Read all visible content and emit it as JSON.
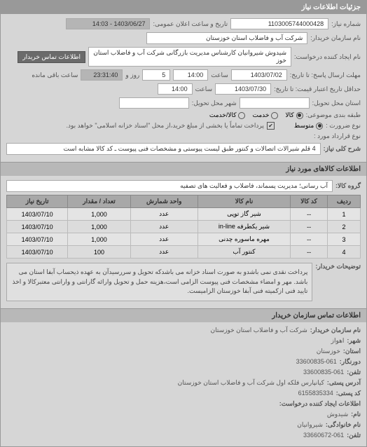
{
  "header": {
    "title": "جزئیات اطلاعات نیاز"
  },
  "fields": {
    "req_no_label": "شماره نیاز:",
    "req_no": "1103005744000428",
    "announce_label": "تاریخ و ساعت اعلان عمومی:",
    "announce_date": "1403/06/27 - 14:03",
    "buyer_label": "نام سازمان خریدار:",
    "buyer": "شرکت آب و فاضلاب استان خوزستان",
    "requester_label": "نام ایجاد کننده درخواست:",
    "requester": "شیدوش شیروانیان کارشناس مدیریت بازرگانی شرکت آب و فاضلاب استان خوز",
    "contact_btn": "اطلاعات تماس خریدار",
    "deadline_send_label": "مهلت ارسال پاسخ: تا تاریخ:",
    "deadline_send_date": "1403/07/02",
    "time_label": "ساعت",
    "deadline_send_time": "14:00",
    "days_label": "روز و",
    "days": "5",
    "remain_time": "23:31:40",
    "remain_label": "ساعت باقی مانده",
    "validity_label": "حداقل تاریخ اعتبار قیمت: تا تاریخ:",
    "validity_date": "1403/07/30",
    "validity_time": "14:00",
    "deliver_state_label": "استان محل تحویل:",
    "deliver_city_label": "شهر محل تحویل:",
    "budget_label": "طبقه بندی موضوعی:",
    "budget_opts": {
      "kala": "کالا",
      "khedmat": "خدمت",
      "kala_khedmat": "کالا/خدمت"
    },
    "priority_label": "نوع ضرورت :",
    "priority_opts": {
      "low": "متوسط",
      "mid": "",
      "high": ""
    },
    "pay_note_label": "پرداخت تماماً یا بخشی از مبلغ خرید،از محل \"اسناد خزانه اسلامی\" خواهد بود.",
    "warranty_label": "نوع قرارداد مورد :"
  },
  "need_desc": {
    "label": "شرح کلی نیاز:",
    "value": "4 قلم شیرالات اتصالات و کنتور طبق لیست پیوستی و مشخصات فنی پیوست ـ کد کالا مشابه است"
  },
  "goods": {
    "title": "اطلاعات کالاهای مورد نیاز",
    "group_label": "گروه کالا:",
    "group_value": "آب رسانی؛ مدیریت پسماند، فاضلاب و فعالیت های تصفیه",
    "cols": {
      "row": "ردیف",
      "code": "کد کالا",
      "name": "نام کالا",
      "unit": "واحد شمارش",
      "qty": "تعداد / مقدار",
      "date": "تاریخ نیاز"
    },
    "rows": [
      {
        "r": "1",
        "code": "--",
        "name": "شیر گاز توپی",
        "unit": "عدد",
        "qty": "1,000",
        "date": "1403/07/10"
      },
      {
        "r": "2",
        "code": "--",
        "name": "شیر یکطرفه in-line",
        "unit": "عدد",
        "qty": "1,000",
        "date": "1403/07/10"
      },
      {
        "r": "3",
        "code": "--",
        "name": "مهره ماسوره چدنی",
        "unit": "عدد",
        "qty": "1,000",
        "date": "1403/07/10"
      },
      {
        "r": "4",
        "code": "--",
        "name": "کنتور آب",
        "unit": "عدد",
        "qty": "100",
        "date": "1403/07/10"
      }
    ]
  },
  "notes": {
    "label": "توضیحات خریدار:",
    "value": "پرداخت نقدی نمی باشدو به صورت اسناد خزانه می باشدکه تحویل و سررسیدآن به عهده ذیحساب آبفا استان می باشد. مهر و امضاء مشخصات فنی پیوست الزامی است،هزینه حمل و تحویل وارائه گارانتی و وارانتی معتبرکالا و اخذ تایید فنی ازکمیته فنی آبفا خوزستان الزامیست."
  },
  "contact": {
    "title": "اطلاعات تماس سازمان خریدار",
    "org_label": "نام سازمان خریدار:",
    "org": "شرکت آب و فاضلاب استان خوزستان",
    "city_label": "شهر:",
    "city": "اهواز",
    "province_label": "استان:",
    "province": "خوزستان",
    "fax_label": "دورنگار:",
    "fax": "33600835-061",
    "tel_label": "تلفن:",
    "tel": "33600835-061",
    "addr_label": "آدرس پستی:",
    "addr": "کیانپارس فلکه اول شرکت آب و فاضلاب استان خوزستان",
    "post_label": "کد پستی:",
    "post": "6155835334",
    "creator_label": "اطلاعات ایجاد کننده درخواست:",
    "name_label": "نام:",
    "name": "شیدوش",
    "family_label": "نام خانوادگی:",
    "family": "شیروانیان",
    "phone_label": "تلفن:",
    "phone": "33660672-061"
  },
  "colors": {
    "header_bg": "#999999",
    "panel_bg": "#d6d6d6",
    "field_bg": "#ffffff",
    "dark_field": "#6b6b6b"
  }
}
